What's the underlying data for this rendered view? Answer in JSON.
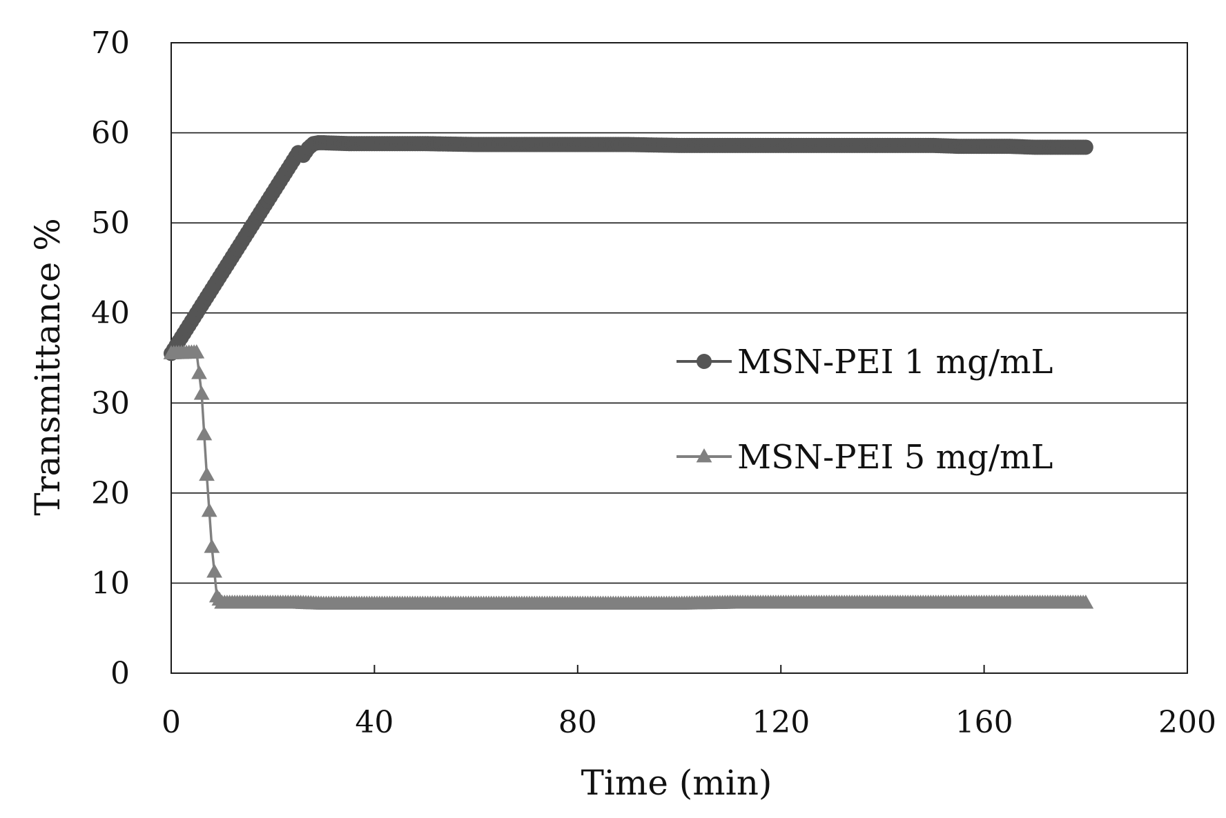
{
  "chart_data": {
    "type": "line",
    "xlabel": "Time (min)",
    "ylabel": "Transmittance %",
    "xlim": [
      0,
      200
    ],
    "ylim": [
      0,
      70
    ],
    "x_ticks": [
      0,
      40,
      80,
      120,
      160,
      200
    ],
    "y_ticks": [
      0,
      10,
      20,
      30,
      40,
      50,
      60,
      70
    ],
    "grid": "horizontal",
    "legend_position": "center-right",
    "series": [
      {
        "name": "MSN-PEI 1 mg/mL",
        "marker": "circle",
        "color": "#555555",
        "x": [
          0,
          25,
          26,
          27,
          28,
          29,
          30,
          35,
          40,
          50,
          60,
          70,
          80,
          90,
          100,
          110,
          120,
          130,
          140,
          150,
          155,
          160,
          165,
          170,
          175,
          180
        ],
        "y": [
          35.5,
          57.8,
          57.5,
          58.3,
          58.8,
          58.9,
          58.9,
          58.8,
          58.8,
          58.8,
          58.7,
          58.7,
          58.7,
          58.7,
          58.6,
          58.6,
          58.6,
          58.6,
          58.6,
          58.6,
          58.5,
          58.5,
          58.5,
          58.4,
          58.4,
          58.4
        ]
      },
      {
        "name": "MSN-PEI 5 mg/mL",
        "marker": "triangle",
        "color": "#808080",
        "x": [
          0,
          5,
          6,
          7,
          8,
          9,
          10,
          15,
          20,
          25,
          30,
          40,
          50,
          60,
          70,
          80,
          90,
          100,
          110,
          120,
          130,
          140,
          150,
          160,
          170,
          180
        ],
        "y": [
          35.5,
          35.6,
          31,
          22,
          14,
          8.5,
          7.8,
          7.8,
          7.8,
          7.8,
          7.7,
          7.7,
          7.7,
          7.7,
          7.7,
          7.7,
          7.7,
          7.7,
          7.8,
          7.8,
          7.8,
          7.8,
          7.8,
          7.8,
          7.8,
          7.8
        ]
      }
    ]
  }
}
